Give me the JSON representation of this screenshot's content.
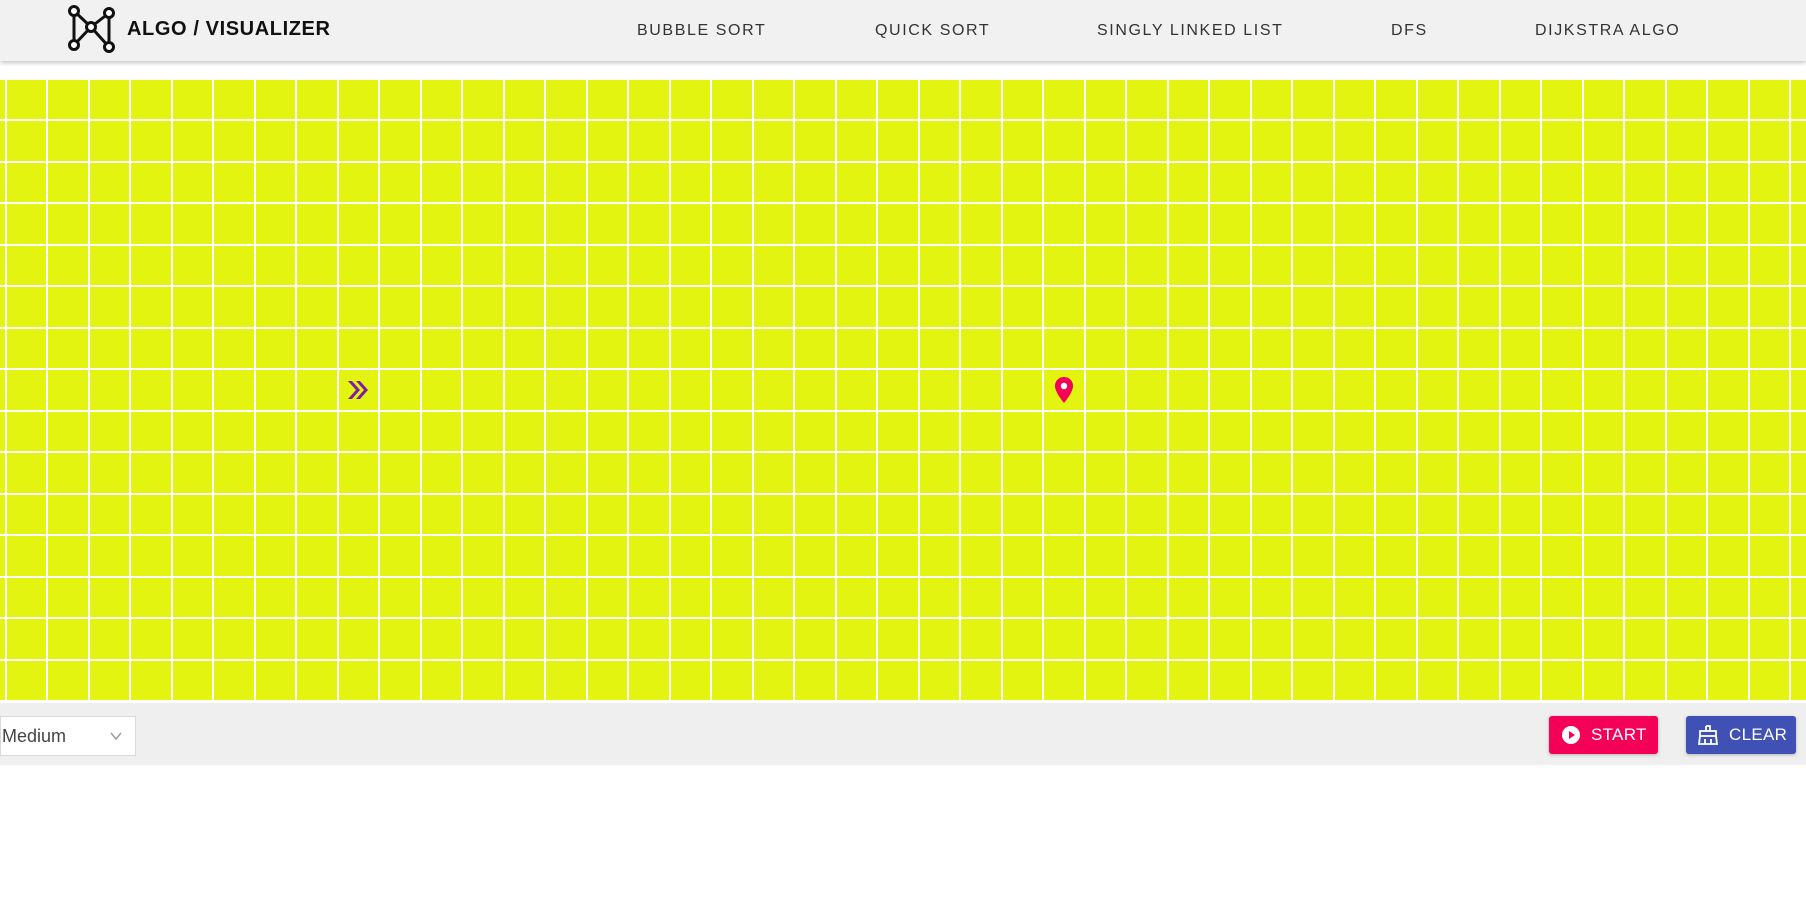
{
  "app": {
    "title": "ALGO / VISUALIZER",
    "logo_icon": "graph-nodes-icon"
  },
  "nav": [
    {
      "label": "BUBBLE SORT"
    },
    {
      "label": "QUICK SORT"
    },
    {
      "label": "SINGLY LINKED LIST"
    },
    {
      "label": "DFS"
    },
    {
      "label": "DIJKSTRA ALGO"
    }
  ],
  "grid": {
    "cell_color": "#e3f411",
    "start_icon": "double-chevron-right-icon",
    "start_color": "#7b1fa2",
    "end_icon": "map-pin-icon",
    "end_color": "#f50057"
  },
  "controls": {
    "speed": {
      "selected": "Medium"
    },
    "start_button": {
      "label": "START",
      "icon": "play-circle-icon",
      "color": "#f50057"
    },
    "clear_button": {
      "label": "CLEAR",
      "icon": "broom-icon",
      "color": "#3f51b5"
    }
  }
}
